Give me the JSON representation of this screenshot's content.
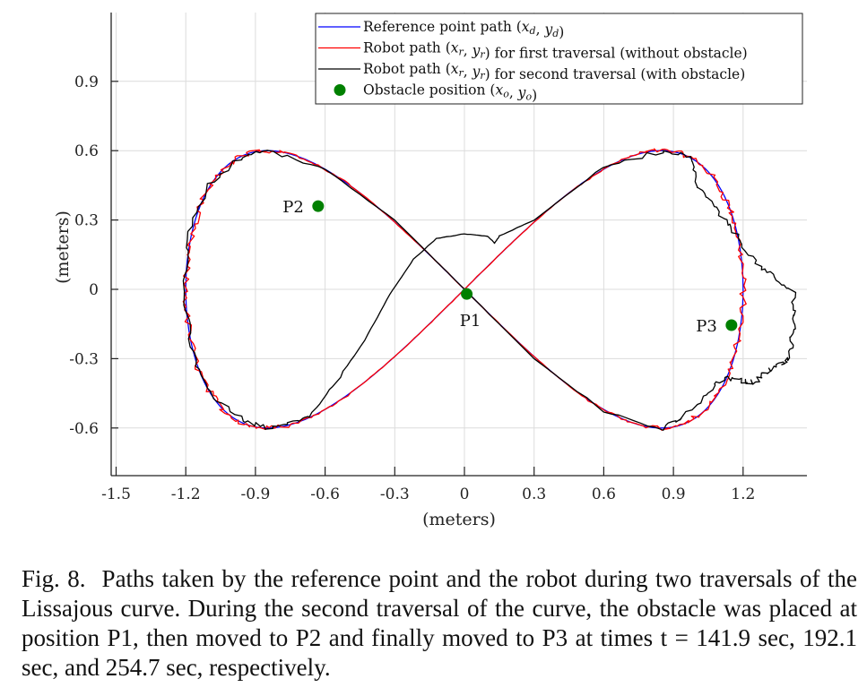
{
  "chart_data": {
    "type": "line",
    "title": "",
    "xlabel": "(meters)",
    "ylabel": "(meters)",
    "xlim": [
      -1.52,
      1.5
    ],
    "ylim": [
      -0.8,
      1.2
    ],
    "grid": true,
    "x_ticks": [
      -1.5,
      -1.2,
      -0.9,
      -0.6,
      -0.3,
      0,
      0.3,
      0.6,
      0.9,
      1.2
    ],
    "x_tick_labels": [
      "-1.5",
      "-1.2",
      "-0.9",
      "-0.6",
      "-0.3",
      "0",
      "0.3",
      "0.6",
      "0.9",
      "1.2"
    ],
    "y_ticks": [
      -0.6,
      -0.3,
      0,
      0.3,
      0.6,
      0.9
    ],
    "y_tick_labels": [
      "-0.6",
      "-0.3",
      "0",
      "0.3",
      "0.6",
      "0.9"
    ],
    "legend_position": "top-right",
    "series": [
      {
        "name": "Reference point path (x_d, y_d)",
        "legend_label": "Reference point path (xd, yd)",
        "color": "#0000ff",
        "kind": "lissajous",
        "params": {
          "ax": 1.2,
          "ay": 0.6,
          "fx": 1,
          "fy": 2
        }
      },
      {
        "name": "Robot path (x_r, y_r) for first traversal (without obstacle)",
        "legend_label": "Robot path (xr, yr) for first traversal (without obstacle)",
        "color": "#ff0000",
        "kind": "noisy-lissajous",
        "noise": 0.025,
        "points": [
          [
            1.2,
            -0.02
          ],
          [
            1.19,
            0.2
          ],
          [
            1.13,
            0.4
          ],
          [
            1.05,
            0.52
          ],
          [
            0.95,
            0.6
          ],
          [
            0.85,
            0.6
          ],
          [
            0.6,
            0.53
          ],
          [
            0.3,
            0.3
          ],
          [
            0.0,
            0.0
          ],
          [
            -0.3,
            -0.3
          ],
          [
            -0.6,
            -0.53
          ],
          [
            -0.85,
            -0.6
          ],
          [
            -0.95,
            -0.58
          ],
          [
            -1.1,
            -0.45
          ],
          [
            -1.18,
            -0.25
          ],
          [
            -1.21,
            0.0
          ],
          [
            -1.18,
            0.25
          ],
          [
            -1.1,
            0.45
          ],
          [
            -0.95,
            0.58
          ],
          [
            -0.8,
            0.6
          ],
          [
            -0.6,
            0.52
          ],
          [
            -0.45,
            0.4
          ],
          [
            -0.3,
            0.3
          ],
          [
            0.0,
            0.0
          ],
          [
            0.3,
            -0.3
          ],
          [
            0.6,
            -0.53
          ],
          [
            0.85,
            -0.6
          ],
          [
            1.0,
            -0.55
          ],
          [
            1.1,
            -0.42
          ],
          [
            1.17,
            -0.2
          ],
          [
            1.2,
            -0.02
          ]
        ]
      },
      {
        "name": "Robot path (x_r, y_r) for second traversal (with obstacle)",
        "legend_label": "Robot path (xr, yr) for second traversal (with obstacle)",
        "color": "#000000",
        "kind": "waypoints",
        "points": [
          [
            1.21,
            -0.4
          ],
          [
            1.12,
            -0.38
          ],
          [
            1.05,
            -0.45
          ],
          [
            0.95,
            -0.55
          ],
          [
            0.85,
            -0.6
          ],
          [
            0.6,
            -0.53
          ],
          [
            0.3,
            -0.3
          ],
          [
            0.0,
            0.0
          ],
          [
            -0.3,
            0.3
          ],
          [
            -0.6,
            0.52
          ],
          [
            -0.85,
            0.6
          ],
          [
            -0.95,
            0.58
          ],
          [
            -1.1,
            0.45
          ],
          [
            -1.18,
            0.25
          ],
          [
            -1.21,
            0.0
          ],
          [
            -1.18,
            -0.25
          ],
          [
            -1.1,
            -0.45
          ],
          [
            -0.95,
            -0.57
          ],
          [
            -0.85,
            -0.6
          ],
          [
            -0.72,
            -0.57
          ],
          [
            -0.67,
            -0.55
          ],
          [
            -0.55,
            -0.4
          ],
          [
            -0.43,
            -0.22
          ],
          [
            -0.32,
            -0.02
          ],
          [
            -0.22,
            0.13
          ],
          [
            -0.12,
            0.22
          ],
          [
            0.0,
            0.24
          ],
          [
            0.1,
            0.23
          ],
          [
            0.13,
            0.2
          ],
          [
            0.15,
            0.23
          ],
          [
            0.3,
            0.3
          ],
          [
            0.6,
            0.53
          ],
          [
            0.85,
            0.6
          ],
          [
            0.97,
            0.58
          ],
          [
            1.0,
            0.45
          ],
          [
            1.08,
            0.35
          ],
          [
            1.16,
            0.25
          ],
          [
            1.25,
            0.12
          ],
          [
            1.33,
            0.05
          ],
          [
            1.42,
            -0.02
          ],
          [
            1.42,
            -0.12
          ],
          [
            1.41,
            -0.2
          ],
          [
            1.4,
            -0.3
          ],
          [
            1.35,
            -0.33
          ],
          [
            1.3,
            -0.36
          ],
          [
            1.25,
            -0.4
          ],
          [
            1.21,
            -0.4
          ]
        ]
      }
    ],
    "obstacles": {
      "legend_label": "Obstacle position (xo, yo)",
      "color": "#008000",
      "points": [
        {
          "label": "P1",
          "x": 0.01,
          "y": -0.02,
          "label_side": "below"
        },
        {
          "label": "P2",
          "x": -0.63,
          "y": 0.36,
          "label_side": "left"
        },
        {
          "label": "P3",
          "x": 1.15,
          "y": -0.155,
          "label_side": "left"
        }
      ]
    },
    "annotations": [
      "P1",
      "P2",
      "P3"
    ]
  },
  "legend": {
    "items": [
      {
        "main": "Reference point path (",
        "v1": "x",
        "s1": "d",
        "v2": "y",
        "s2": "d",
        "tail": ")"
      },
      {
        "main": "Robot path (",
        "v1": "x",
        "s1": "r",
        "v2": "y",
        "s2": "r",
        "tail": ") for first traversal (without obstacle)"
      },
      {
        "main": "Robot path (",
        "v1": "x",
        "s1": "r",
        "v2": "y",
        "s2": "r",
        "tail": ") for second traversal (with obstacle)"
      },
      {
        "main": "Obstacle position (",
        "v1": "x",
        "s1": "o",
        "v2": "y",
        "s2": "o",
        "tail": ")"
      }
    ]
  },
  "caption": {
    "fignum": "Fig. 8.",
    "text": "Paths taken by the reference point and the robot during two traversals of the Lissajous curve. During the second traversal of the curve, the obstacle was placed at position P1, then moved to P2 and finally moved to P3 at times t = 141.9 sec,  192.1 sec,  and 254.7 sec, respectively."
  }
}
